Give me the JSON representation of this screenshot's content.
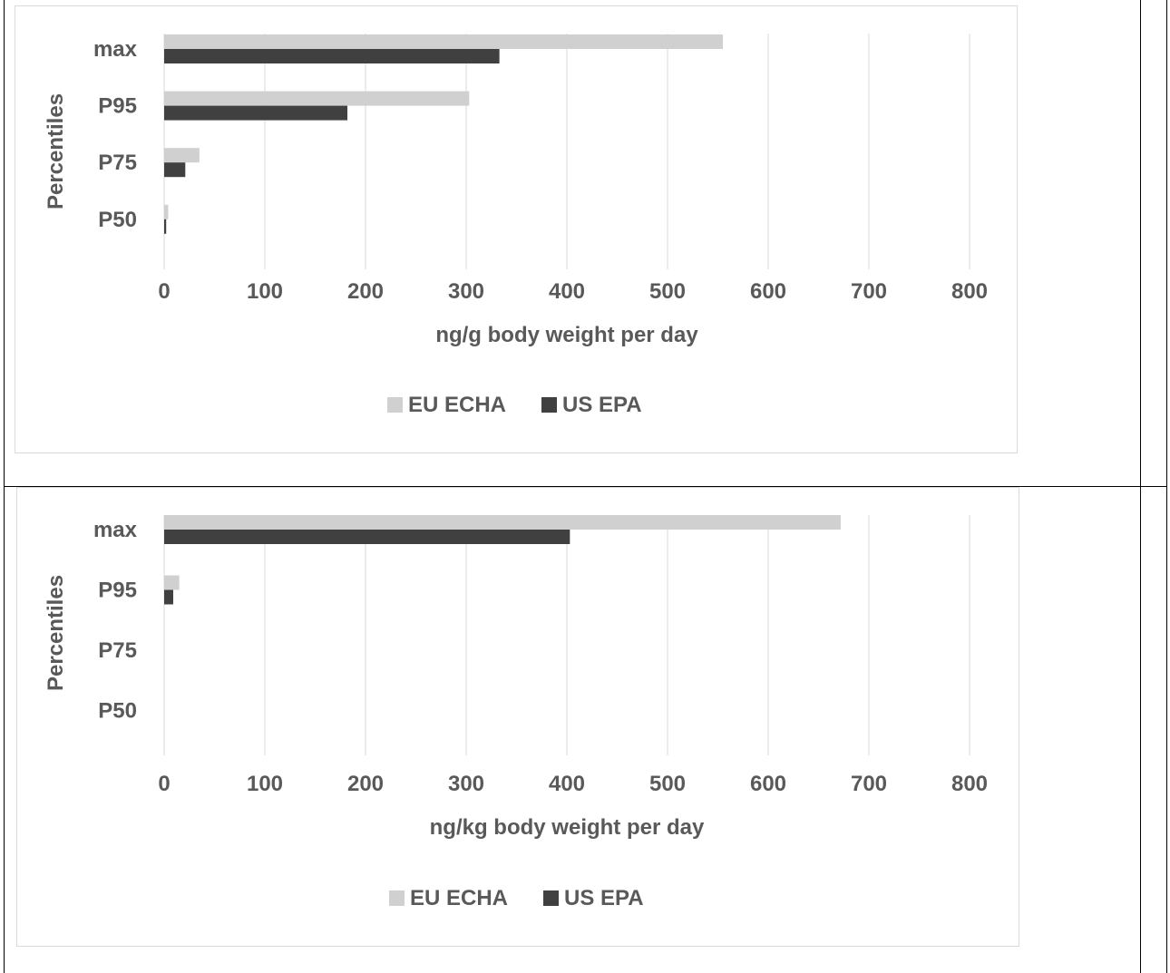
{
  "chart_data": [
    {
      "type": "bar",
      "orientation": "horizontal",
      "categories": [
        "P50",
        "P75",
        "P95",
        "max"
      ],
      "series": [
        {
          "name": "EU ECHA",
          "color": "#d0d0d0",
          "values": [
            4,
            35,
            303,
            555
          ]
        },
        {
          "name": "US EPA",
          "color": "#404040",
          "values": [
            2,
            21,
            182,
            333
          ]
        }
      ],
      "xlabel": "ng/g body weight per day",
      "ylabel": "Percentiles",
      "xlim": [
        0,
        800
      ],
      "xticks": [
        "0",
        "100",
        "200",
        "300",
        "400",
        "500",
        "600",
        "700",
        "800"
      ],
      "grid": "vertical",
      "legend": "bottom"
    },
    {
      "type": "bar",
      "orientation": "horizontal",
      "categories": [
        "P50",
        "P75",
        "P95",
        "max"
      ],
      "series": [
        {
          "name": "EU ECHA",
          "color": "#d0d0d0",
          "values": [
            0,
            0,
            15,
            672
          ]
        },
        {
          "name": "US EPA",
          "color": "#404040",
          "values": [
            0,
            0,
            9,
            403
          ]
        }
      ],
      "xlabel": "ng/kg body weight per day",
      "ylabel": "Percentiles",
      "xlim": [
        0,
        800
      ],
      "xticks": [
        "0",
        "100",
        "200",
        "300",
        "400",
        "500",
        "600",
        "700",
        "800"
      ],
      "grid": "vertical",
      "legend": "bottom"
    }
  ]
}
